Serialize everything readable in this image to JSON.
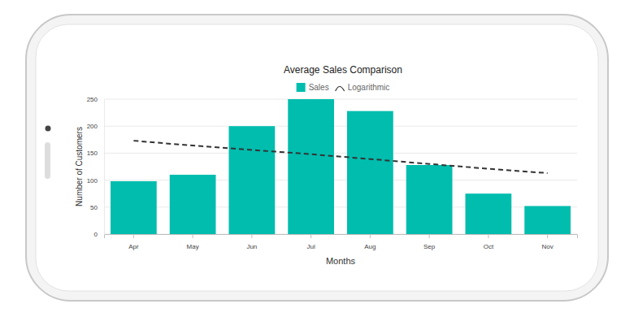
{
  "chart_data": {
    "type": "bar",
    "title": "Average Sales Comparison",
    "x_label": "Months",
    "y_label": "Number of Customers",
    "categories": [
      "Apr",
      "May",
      "Jun",
      "Jul",
      "Aug",
      "Sep",
      "Oct",
      "Nov"
    ],
    "series": [
      {
        "name": "Sales",
        "type": "bar",
        "color": "#00bdae",
        "values": [
          98,
          110,
          200,
          250,
          228,
          128,
          75,
          52
        ]
      },
      {
        "name": "Logarithmic",
        "type": "line",
        "color": "#333333",
        "line_style": "dashed",
        "values": [
          173,
          164,
          156,
          148,
          139,
          130,
          121,
          113
        ]
      }
    ],
    "ylim": [
      0,
      250
    ],
    "yticks": [
      0,
      50,
      100,
      150,
      200,
      250
    ],
    "grid": true,
    "legend": "top"
  }
}
